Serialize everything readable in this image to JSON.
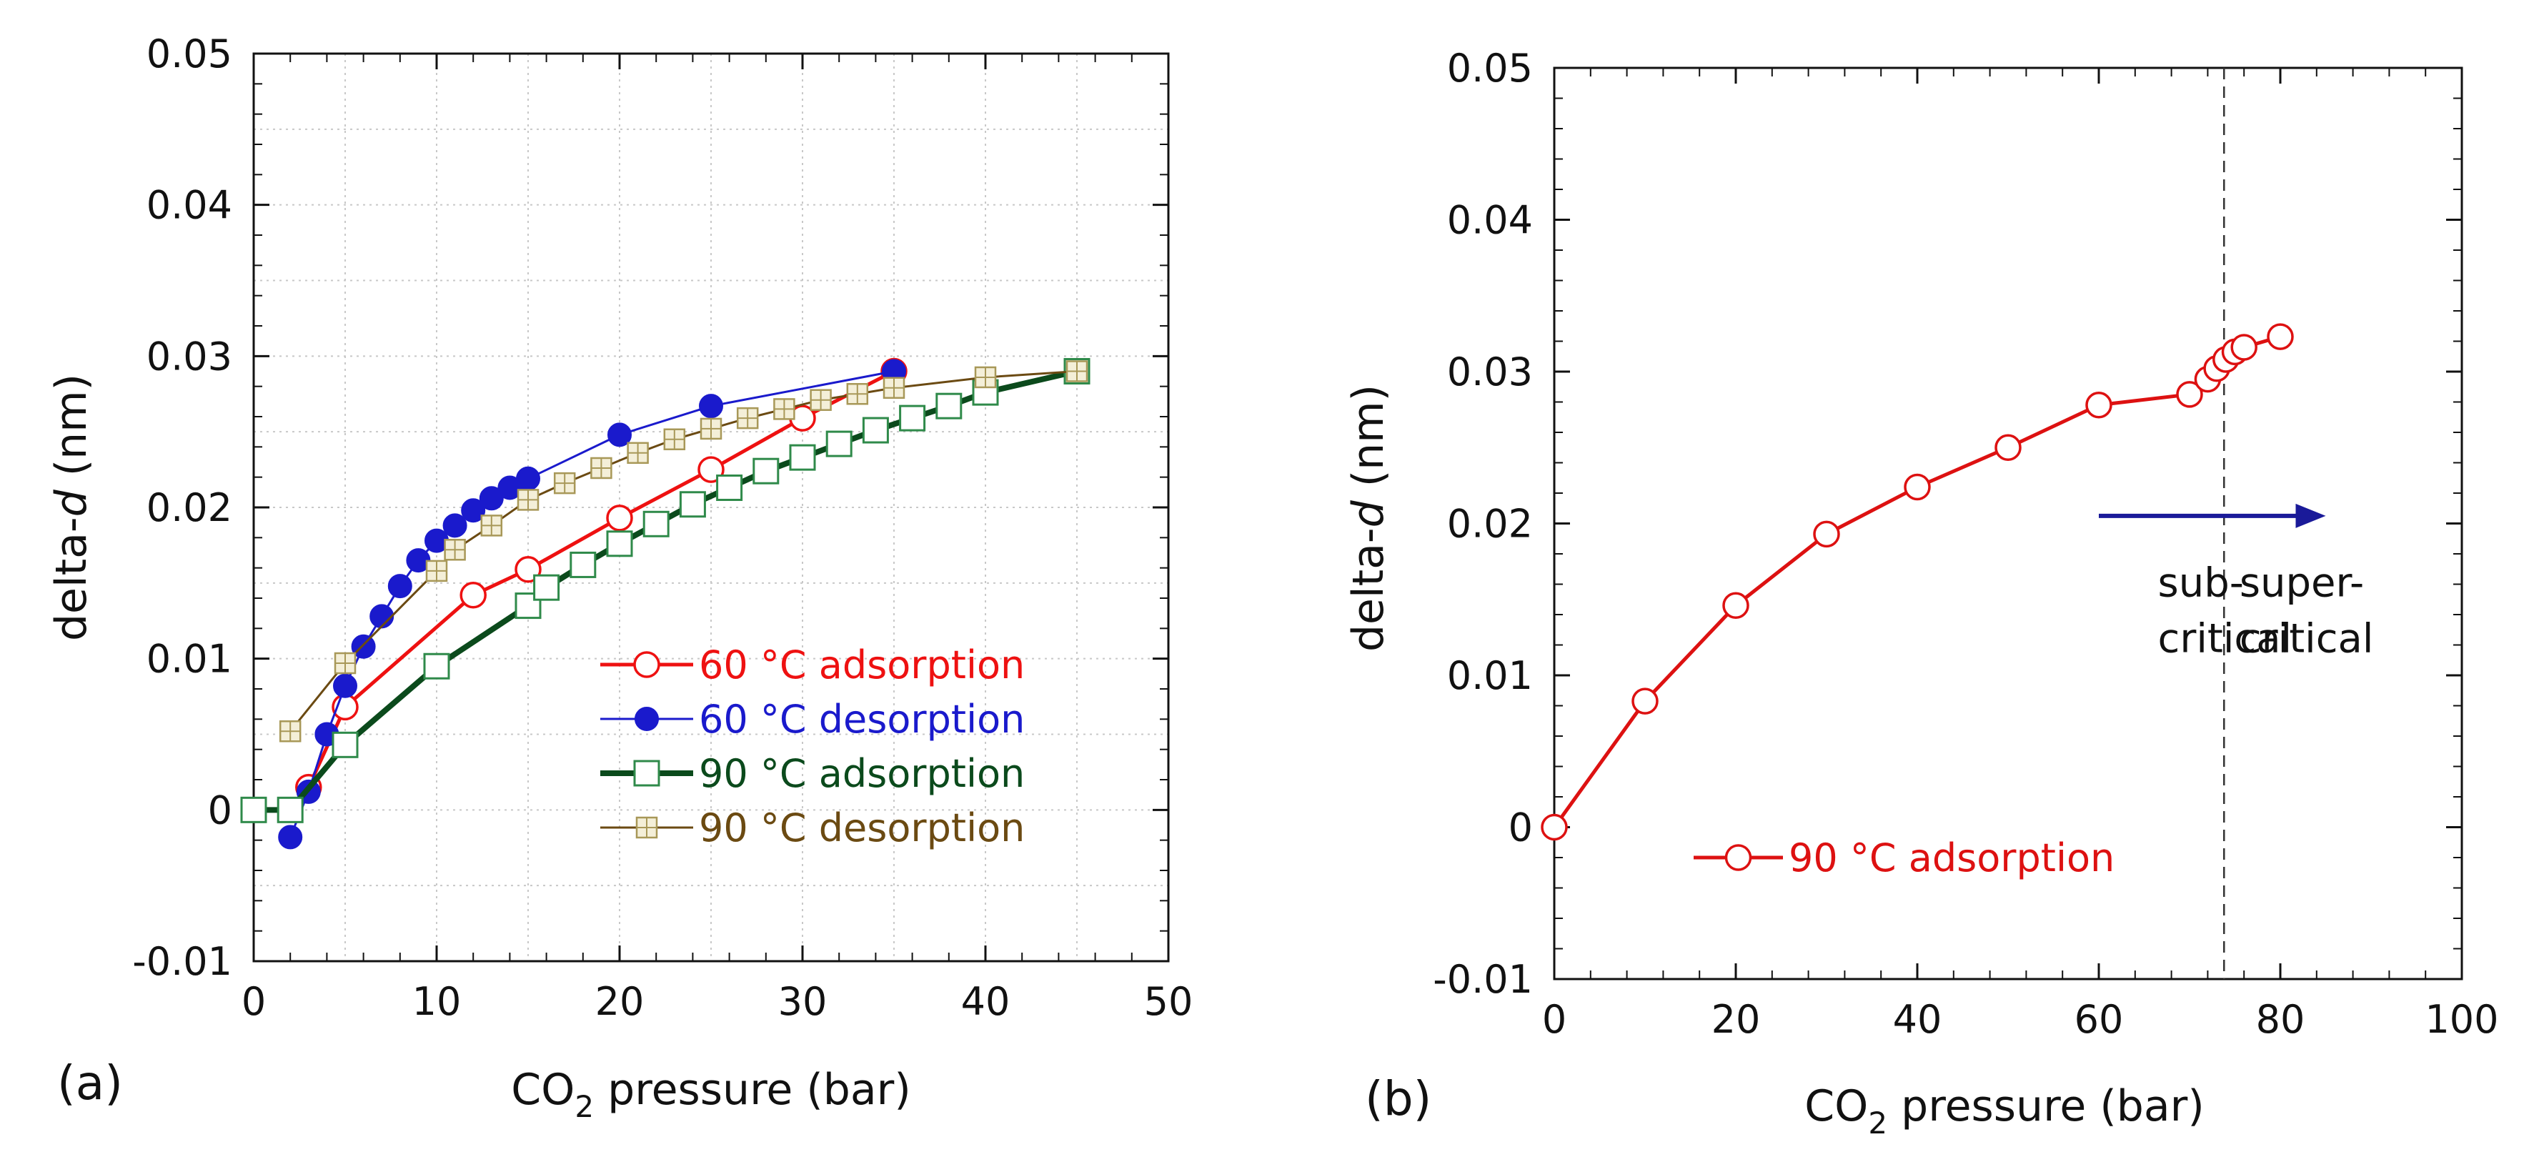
{
  "chart_data": [
    {
      "type": "line",
      "panel_label": "(a)",
      "xlabel": "CO",
      "xlabel_sub": "2",
      "xlabel_tail": " pressure (bar)",
      "ylabel": "delta-",
      "ylabel_italic": "d",
      "ylabel_tail": " (nm)",
      "xlim": [
        0,
        50
      ],
      "ylim": [
        -0.01,
        0.05
      ],
      "xticks": [
        "0",
        "10",
        "20",
        "30",
        "40",
        "50"
      ],
      "yticks": [
        "-0.01",
        "0",
        "0.01",
        "0.02",
        "0.03",
        "0.04",
        "0.05"
      ],
      "grid": true,
      "legend_position": "bottom-right",
      "series": [
        {
          "name": "60 °C adsorption",
          "color": "#ee1111",
          "marker": "open-circle",
          "x": [
            3,
            5,
            12,
            15,
            20,
            25,
            30,
            35
          ],
          "y": [
            0.0015,
            0.0068,
            0.0142,
            0.0159,
            0.0193,
            0.0225,
            0.0259,
            0.029
          ]
        },
        {
          "name": "60 °C desorption",
          "color": "#1a1acc",
          "marker": "filled-circle",
          "x": [
            2,
            3,
            4,
            5,
            6,
            7,
            8,
            9,
            10,
            11,
            12,
            13,
            14,
            15,
            20,
            25,
            35
          ],
          "y": [
            -0.0018,
            0.0012,
            0.005,
            0.0082,
            0.0108,
            0.0128,
            0.0148,
            0.0165,
            0.0178,
            0.0188,
            0.0198,
            0.0206,
            0.0213,
            0.0219,
            0.0248,
            0.0267,
            0.029
          ]
        },
        {
          "name": "90 °C adsorption",
          "color": "#0b4a1c",
          "marker": "open-square",
          "x": [
            0,
            2,
            5,
            10,
            15,
            16,
            18,
            20,
            22,
            24,
            26,
            28,
            30,
            32,
            34,
            36,
            38,
            40,
            45
          ],
          "y": [
            0,
            0,
            0.0043,
            0.0095,
            0.0135,
            0.0147,
            0.0162,
            0.0176,
            0.0189,
            0.0202,
            0.0213,
            0.0224,
            0.0233,
            0.0242,
            0.0251,
            0.0259,
            0.0267,
            0.0276,
            0.029
          ]
        },
        {
          "name": "90 °C desorption",
          "color": "#6b4a12",
          "marker": "crossed-square",
          "x": [
            2,
            5,
            10,
            11,
            13,
            15,
            17,
            19,
            21,
            23,
            25,
            27,
            29,
            31,
            33,
            35,
            40,
            45
          ],
          "y": [
            0.0052,
            0.0097,
            0.0158,
            0.0172,
            0.0188,
            0.0205,
            0.0216,
            0.0226,
            0.0236,
            0.0245,
            0.0252,
            0.0259,
            0.0265,
            0.0271,
            0.0275,
            0.0279,
            0.0286,
            0.029
          ]
        }
      ]
    },
    {
      "type": "line",
      "panel_label": "(b)",
      "xlabel": "CO",
      "xlabel_sub": "2",
      "xlabel_tail": " pressure (bar)",
      "ylabel": "delta-",
      "ylabel_italic": "d",
      "ylabel_tail": " (nm)",
      "xlim": [
        0,
        100
      ],
      "ylim": [
        -0.01,
        0.05
      ],
      "xticks": [
        "0",
        "20",
        "40",
        "60",
        "80",
        "100"
      ],
      "yticks": [
        "-0.01",
        "0",
        "0.01",
        "0.02",
        "0.03",
        "0.04",
        "0.05"
      ],
      "grid": false,
      "legend_position": "bottom-center",
      "critical_pressure": 73.8,
      "annotations": {
        "sub_line1": "sub-",
        "sub_line2": "critical",
        "super_line1": "super-",
        "super_line2": "critical",
        "arrow_from_x": 60,
        "arrow_to_x": 85,
        "arrow_y": 0.0205,
        "arrow_color": "#1a1a99"
      },
      "series": [
        {
          "name": "90 °C adsorption",
          "color": "#dd1111",
          "marker": "open-circle",
          "x": [
            0,
            10,
            20,
            30,
            40,
            50,
            60,
            70,
            72,
            73,
            74,
            75,
            76,
            80
          ],
          "y": [
            0,
            0.0083,
            0.0146,
            0.0193,
            0.0224,
            0.025,
            0.0278,
            0.0285,
            0.0295,
            0.0302,
            0.0308,
            0.0313,
            0.0316,
            0.0323
          ]
        }
      ]
    }
  ]
}
